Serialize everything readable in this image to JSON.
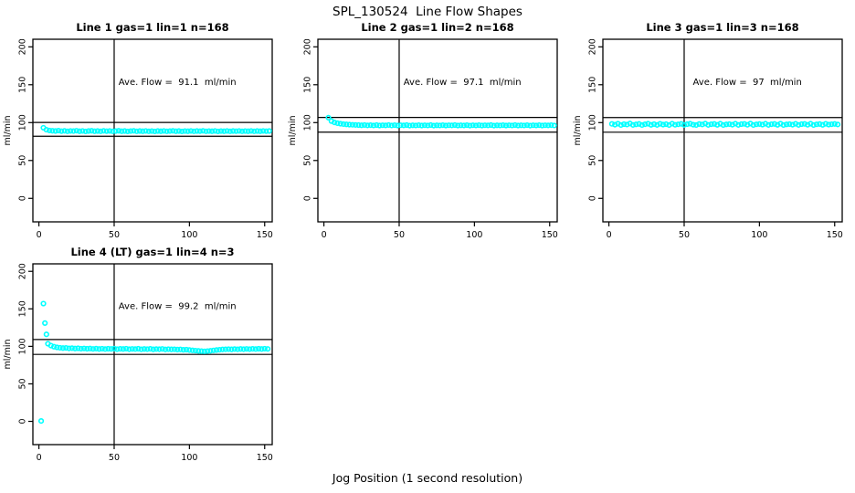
{
  "figure": {
    "title": "SPL_130524  Line Flow Shapes",
    "xlabel": "Jog Position (1 second resolution)",
    "background": "#FFFFFF",
    "point_color": "#00FFFF",
    "axis_color": "#000000",
    "text_color": "#000000"
  },
  "chart_data": [
    {
      "type": "scatter",
      "title": "Line 1 gas=1 lin=1 n=168",
      "annotation": "Ave. Flow =  91.1  ml/min",
      "ave_flow": 91.1,
      "ylabel": "ml/min",
      "xlim": [
        -4,
        155
      ],
      "ylim": [
        -31,
        210
      ],
      "xticks": [
        0,
        50,
        100,
        150
      ],
      "yticks": [
        0,
        50,
        100,
        150,
        200
      ],
      "vline_x": 50,
      "hlines": [
        100.2,
        82.0
      ],
      "annotation_pos": {
        "x": 92,
        "y": 150
      },
      "x_start": 3,
      "x_step": 2,
      "y": [
        93.2,
        90.6,
        89.6,
        89.2,
        88.9,
        89.4,
        88.7,
        89.1,
        88.5,
        89.0,
        88.8,
        89.3,
        88.6,
        89.0,
        88.4,
        88.9,
        89.2,
        88.6,
        88.9,
        88.5,
        89.1,
        88.7,
        89.0,
        88.5,
        88.8,
        89.2,
        88.6,
        88.9,
        88.4,
        88.8,
        89.1,
        88.5,
        88.9,
        88.6,
        89.0,
        88.5,
        88.8,
        88.4,
        88.9,
        88.6,
        89.0,
        88.5,
        88.8,
        89.1,
        88.6,
        88.9,
        88.4,
        88.8,
        88.6,
        89.0,
        88.5,
        88.9,
        88.7,
        89.1,
        88.5,
        88.8,
        88.6,
        89.0,
        88.4,
        88.8,
        88.6,
        89.0,
        88.5,
        88.9,
        88.7,
        89.0,
        88.5,
        88.8,
        88.6,
        89.0,
        88.5,
        88.9,
        88.6,
        89.0,
        88.7,
        88.9
      ],
      "extra_points": []
    },
    {
      "type": "scatter",
      "title": "Line 2 gas=1 lin=2 n=168",
      "annotation": "Ave. Flow =  97.1  ml/min",
      "ave_flow": 97.1,
      "ylabel": "ml/min",
      "xlim": [
        -4,
        155
      ],
      "ylim": [
        -31,
        210
      ],
      "xticks": [
        0,
        50,
        100,
        150
      ],
      "yticks": [
        0,
        50,
        100,
        150,
        200
      ],
      "vline_x": 50,
      "hlines": [
        106.8,
        87.4
      ],
      "annotation_pos": {
        "x": 92,
        "y": 150
      },
      "x_start": 3,
      "x_step": 2,
      "y": [
        106.5,
        102.0,
        100.2,
        99.2,
        98.5,
        98.0,
        97.6,
        97.3,
        97.1,
        96.9,
        96.7,
        96.4,
        96.8,
        96.3,
        96.6,
        96.2,
        96.7,
        96.1,
        96.5,
        96.3,
        96.8,
        96.2,
        96.6,
        96.1,
        96.5,
        96.3,
        96.7,
        96.0,
        96.4,
        96.2,
        96.6,
        96.1,
        96.5,
        96.2,
        96.7,
        96.0,
        96.4,
        96.2,
        96.6,
        96.1,
        96.5,
        96.3,
        96.7,
        96.1,
        96.4,
        96.2,
        96.6,
        96.0,
        96.5,
        96.2,
        96.6,
        96.1,
        96.5,
        96.3,
        96.7,
        96.0,
        96.4,
        96.2,
        96.6,
        96.1,
        96.5,
        96.2,
        96.7,
        96.1,
        96.4,
        96.2,
        96.6,
        96.0,
        96.5,
        96.2,
        96.6,
        96.1,
        96.5,
        96.3,
        96.6,
        96.2
      ],
      "extra_points": []
    },
    {
      "type": "scatter",
      "title": "Line 3 gas=1 lin=3 n=168",
      "annotation": "Ave. Flow =  97  ml/min",
      "ave_flow": 97,
      "ylabel": "ml/min",
      "xlim": [
        -4,
        155
      ],
      "ylim": [
        -31,
        210
      ],
      "xticks": [
        0,
        50,
        100,
        150
      ],
      "yticks": [
        0,
        50,
        100,
        150,
        200
      ],
      "vline_x": 50,
      "hlines": [
        106.7,
        87.3
      ],
      "annotation_pos": {
        "x": 92,
        "y": 150
      },
      "x_start": 2,
      "x_step": 2,
      "y": [
        98.3,
        97.2,
        98.6,
        96.8,
        97.9,
        97.4,
        98.8,
        96.9,
        97.6,
        98.2,
        96.8,
        97.8,
        98.5,
        97.0,
        98.0,
        96.9,
        98.4,
        97.3,
        97.9,
        96.8,
        98.6,
        97.1,
        97.7,
        98.3,
        96.9,
        97.9,
        98.5,
        97.2,
        96.8,
        98.1,
        97.5,
        98.7,
        96.9,
        97.8,
        98.2,
        97.0,
        98.5,
        96.8,
        97.6,
        98.0,
        97.2,
        98.6,
        96.9,
        97.9,
        98.3,
        97.1,
        98.7,
        96.8,
        97.7,
        98.1,
        97.3,
        98.5,
        96.9,
        97.8,
        98.2,
        97.0,
        98.6,
        96.8,
        97.6,
        98.0,
        97.2,
        98.4,
        96.9,
        97.9,
        98.3,
        97.1,
        98.5,
        96.8,
        97.7,
        98.1,
        97.0,
        98.4,
        97.3,
        97.8,
        98.2,
        97.5
      ],
      "extra_points": []
    },
    {
      "type": "scatter",
      "title": "Line 4 (LT) gas=1 lin=4 n=3",
      "annotation": "Ave. Flow =  99.2  ml/min",
      "ave_flow": 99.2,
      "ylabel": "ml/min",
      "xlim": [
        -4,
        155
      ],
      "ylim": [
        -31,
        210
      ],
      "xticks": [
        0,
        50,
        100,
        150
      ],
      "yticks": [
        0,
        50,
        100,
        150,
        200
      ],
      "vline_x": 50,
      "hlines": [
        109.1,
        89.3
      ],
      "annotation_pos": {
        "x": 92,
        "y": 150
      },
      "x_start": 6,
      "x_step": 2,
      "y": [
        103.5,
        101.0,
        99.5,
        98.6,
        98.1,
        97.7,
        97.9,
        97.3,
        97.6,
        97.1,
        97.4,
        96.9,
        97.2,
        96.8,
        97.1,
        96.6,
        97.0,
        96.5,
        96.9,
        96.4,
        96.8,
        96.6,
        97.0,
        96.3,
        96.7,
        96.5,
        96.9,
        96.2,
        96.6,
        96.4,
        96.8,
        96.1,
        96.5,
        96.3,
        96.7,
        96.0,
        96.4,
        96.2,
        96.6,
        95.9,
        96.3,
        96.0,
        96.1,
        95.7,
        95.9,
        95.4,
        95.6,
        95.1,
        94.7,
        94.3,
        93.9,
        93.6,
        93.4,
        93.7,
        94.1,
        94.6,
        95.1,
        95.5,
        95.9,
        96.1,
        96.3,
        96.0,
        96.4,
        96.1,
        96.5,
        96.2,
        96.6,
        96.3,
        96.7,
        96.4,
        96.8,
        96.5,
        96.9,
        96.6
      ],
      "extra_points": [
        [
          1.5,
          0.5
        ],
        [
          3,
          157
        ],
        [
          4,
          131
        ],
        [
          5,
          116
        ]
      ]
    }
  ]
}
